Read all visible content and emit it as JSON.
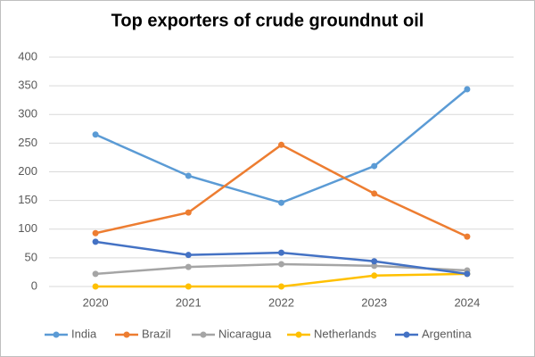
{
  "chart_data": {
    "type": "line",
    "title": "Top exporters of crude groundnut oil",
    "categories": [
      "2020",
      "2021",
      "2022",
      "2023",
      "2024"
    ],
    "series": [
      {
        "name": "India",
        "color": "#5b9bd5",
        "values": [
          265,
          193,
          146,
          210,
          344
        ]
      },
      {
        "name": "Brazil",
        "color": "#ed7d31",
        "values": [
          93,
          129,
          247,
          162,
          87
        ]
      },
      {
        "name": "Nicaragua",
        "color": "#a5a5a5",
        "values": [
          22,
          34,
          39,
          36,
          28
        ]
      },
      {
        "name": "Netherlands",
        "color": "#ffc000",
        "values": [
          0,
          0,
          0,
          19,
          22
        ]
      },
      {
        "name": "Argentina",
        "color": "#4472c4",
        "values": [
          78,
          55,
          59,
          44,
          22
        ]
      }
    ],
    "ylim": [
      0,
      400
    ],
    "yticks": [
      0,
      50,
      100,
      150,
      200,
      250,
      300,
      350,
      400
    ],
    "grid": true,
    "legend": "bottom"
  }
}
